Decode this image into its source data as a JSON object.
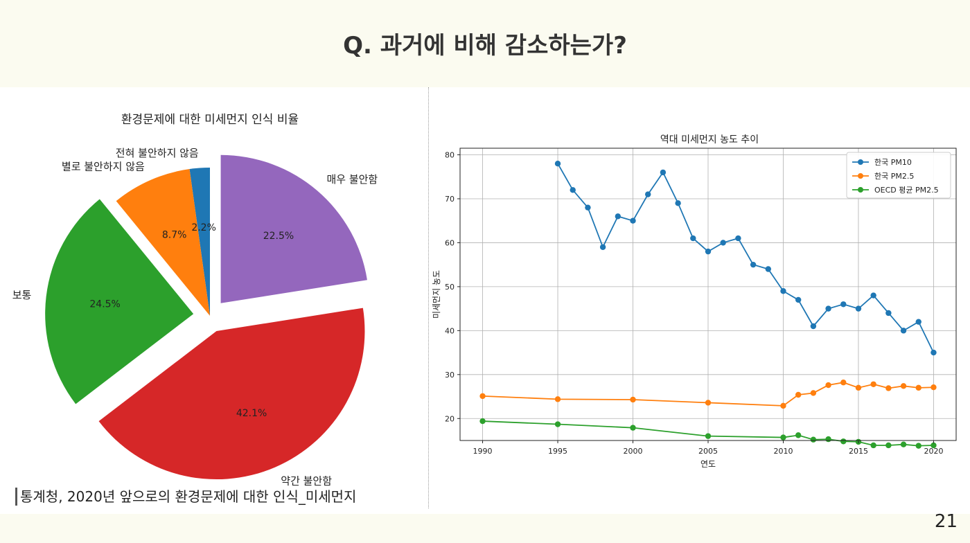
{
  "slide": {
    "title": "Q. 과거에 비해 감소하는가?",
    "source": "통계청, 2020년 앞으로의 환경문제에 대한 인식_미세먼지",
    "page_number": "21"
  },
  "chart_data": [
    {
      "type": "pie",
      "title": "환경문제에 대한 미세먼지 인식 비율",
      "slices": [
        {
          "label": "전혀 불안하지 않음",
          "value": 2.2,
          "pct_label": "2.2%",
          "color": "#1f77b4",
          "explode": false
        },
        {
          "label": "별로 불안하지 않음",
          "value": 8.7,
          "pct_label": "8.7%",
          "color": "#ff7f0e",
          "explode": false
        },
        {
          "label": "보통",
          "value": 24.5,
          "pct_label": "24.5%",
          "color": "#2ca02c",
          "explode": true
        },
        {
          "label": "약간 불안함",
          "value": 42.1,
          "pct_label": "42.1%",
          "color": "#d62728",
          "explode": true
        },
        {
          "label": "매우 불안함",
          "value": 22.5,
          "pct_label": "22.5%",
          "color": "#9467bd",
          "explode": true
        }
      ]
    },
    {
      "type": "line",
      "title": "역대 미세먼지 농도 추이",
      "xlabel": "연도",
      "ylabel": "미세먼지 농도",
      "xlim": [
        1988.5,
        2021.5
      ],
      "ylim": [
        15,
        81.5
      ],
      "xticks": [
        1990,
        1995,
        2000,
        2005,
        2010,
        2015,
        2020
      ],
      "yticks": [
        20,
        30,
        40,
        50,
        60,
        70,
        80
      ],
      "grid": true,
      "legend_position": "top-right",
      "series": [
        {
          "name": "한국 PM10",
          "color": "#1f77b4",
          "x": [
            1995,
            1996,
            1997,
            1998,
            1999,
            2000,
            2001,
            2002,
            2003,
            2004,
            2005,
            2006,
            2007,
            2008,
            2009,
            2010,
            2011,
            2012,
            2013,
            2014,
            2015,
            2016,
            2017,
            2018,
            2019,
            2020
          ],
          "y": [
            78,
            72,
            68,
            59,
            66,
            65,
            71,
            76,
            69,
            61,
            58,
            60,
            61,
            55,
            54,
            49,
            47,
            41,
            45,
            46,
            45,
            48,
            44,
            40,
            42,
            35
          ]
        },
        {
          "name": "한국 PM2.5",
          "color": "#ff7f0e",
          "x": [
            1990,
            1995,
            2000,
            2005,
            2010,
            2011,
            2012,
            2013,
            2014,
            2015,
            2016,
            2017,
            2018,
            2019,
            2020
          ],
          "y": [
            25.1,
            24.4,
            24.3,
            23.6,
            22.9,
            25.4,
            25.8,
            27.6,
            28.2,
            27.0,
            27.8,
            26.9,
            27.4,
            27.0,
            27.1
          ]
        },
        {
          "name": "OECD 평균 PM2.5",
          "color": "#2ca02c",
          "x": [
            1990,
            1995,
            2000,
            2005,
            2010,
            2011,
            2012,
            2013,
            2014,
            2015,
            2016,
            2017,
            2018,
            2019,
            2020
          ],
          "y": [
            19.4,
            18.7,
            17.9,
            16.0,
            15.7,
            16.2,
            15.2,
            15.3,
            14.8,
            14.7,
            13.9,
            13.9,
            14.1,
            13.8,
            13.9
          ]
        }
      ]
    }
  ]
}
